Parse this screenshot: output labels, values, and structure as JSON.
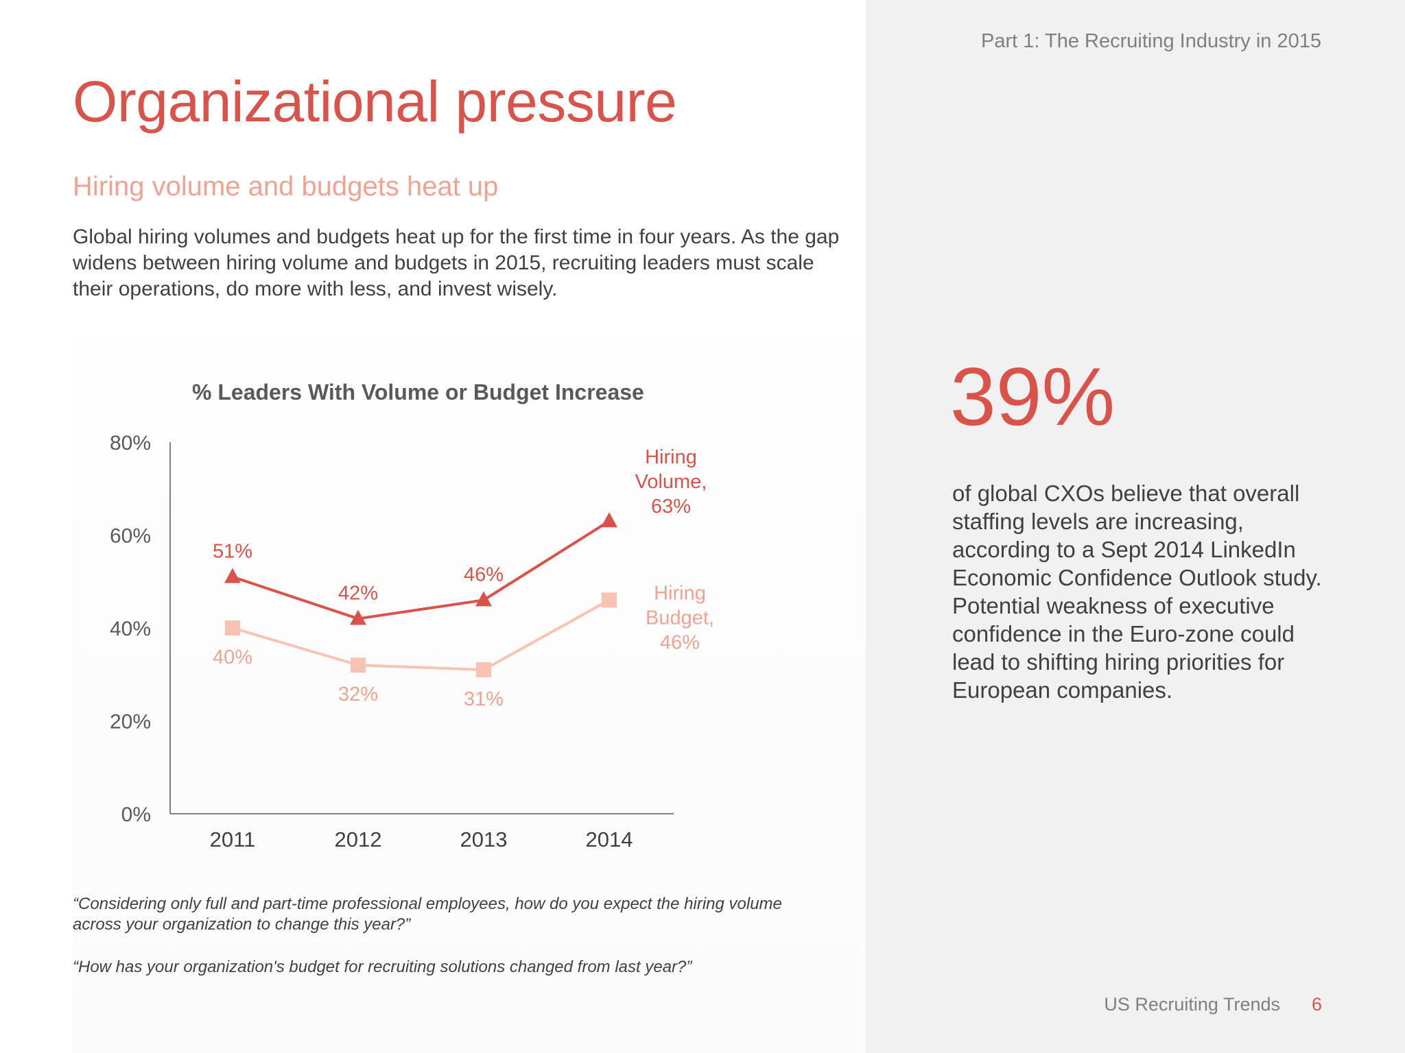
{
  "header": {
    "section": "Part 1: The Recruiting Industry in 2015",
    "title": "Organizational pressure",
    "subtitle": "Hiring volume and budgets heat up",
    "body": "Global hiring volumes and budgets heat up for the first time in four years. As the gap widens between hiring volume and budgets in 2015, recruiting leaders must scale their operations, do more with less, and invest wisely."
  },
  "chart_data": {
    "type": "line",
    "title": "% Leaders With Volume or Budget Increase",
    "categories": [
      "2011",
      "2012",
      "2013",
      "2014"
    ],
    "y_ticks": [
      "0%",
      "20%",
      "40%",
      "60%",
      "80%"
    ],
    "ylim": [
      0,
      80
    ],
    "grid": false,
    "series": [
      {
        "name_lines": [
          "Hiring",
          "Volume,",
          "63%"
        ],
        "values": [
          51,
          42,
          46,
          63
        ],
        "labels": [
          "51%",
          "42%",
          "46%",
          "63%"
        ],
        "color": "#d9534a",
        "marker": "triangle"
      },
      {
        "name_lines": [
          "Hiring",
          "Budget,",
          "46%"
        ],
        "values": [
          40,
          32,
          31,
          46
        ],
        "labels": [
          "40%",
          "32%",
          "31%",
          "46%"
        ],
        "color": "#f9c3b3",
        "label_color": "#f0a392",
        "marker": "square"
      }
    ]
  },
  "quotes": {
    "q1": "“Considering only full and part-time professional employees, how do you expect the hiring volume across your organization to change this year?”",
    "q2": "“How has your organization's budget for recruiting solutions changed from last year?”"
  },
  "stat": {
    "value": "39%",
    "text": "of global CXOs believe that overall staffing levels are increasing, according to a Sept 2014 LinkedIn Economic Confidence Outlook study. Potential weakness of executive confidence in the Euro-zone could lead to shifting hiring priorities for European companies."
  },
  "footer": {
    "label": "US Recruiting Trends",
    "page": "6"
  }
}
